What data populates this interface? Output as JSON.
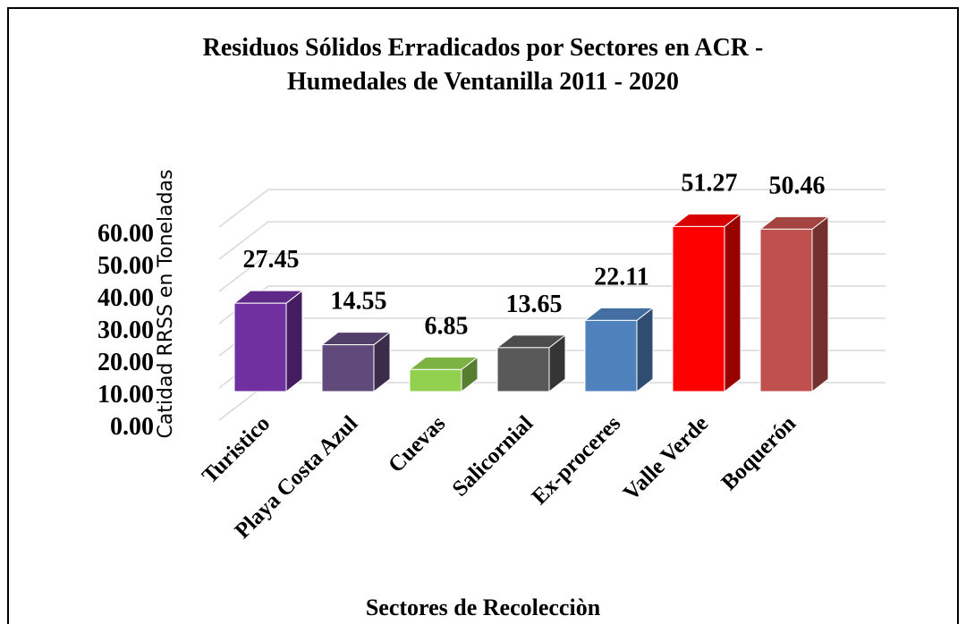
{
  "chart_data": {
    "type": "bar3d",
    "title": [
      "Residuos Sólidos Erradicados por Sectores en ACR -",
      "Humedales de Ventanilla 2011 - 2020"
    ],
    "x_label": "Sectores de Recolecciòn",
    "y_label": "Catidad RRSS en Toneladas",
    "categories": [
      "Turistico",
      "Playa Costa Azul",
      "Cuevas",
      "Salicornial",
      "Ex-proceres",
      "Valle Verde",
      "Boquerón"
    ],
    "values": [
      27.45,
      14.55,
      6.85,
      13.65,
      22.11,
      51.27,
      50.46
    ],
    "colors": [
      "#7030a0",
      "#604a7b",
      "#92d050",
      "#595959",
      "#4f81bd",
      "#ff0000",
      "#c0504d"
    ],
    "ylim": [
      0,
      60
    ],
    "yticks": [
      {
        "value": 0,
        "label": "0.00"
      },
      {
        "value": 10,
        "label": "10.00"
      },
      {
        "value": 20,
        "label": "20.00"
      },
      {
        "value": 30,
        "label": "30.00"
      },
      {
        "value": 40,
        "label": "40.00"
      },
      {
        "value": 50,
        "label": "50.00"
      },
      {
        "value": 60,
        "label": "60.00"
      }
    ],
    "grid": true
  }
}
